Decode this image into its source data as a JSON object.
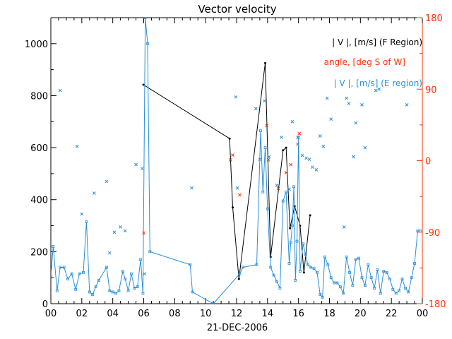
{
  "chart_data": {
    "type": "line",
    "title": "Vector velocity",
    "xlabel": "21-DEC-2006",
    "ylabel": "",
    "y2label": "",
    "xlim": [
      0,
      24
    ],
    "ylim": [
      0,
      1100
    ],
    "y2lim": [
      -180,
      180
    ],
    "x_tick_labels": [
      "00",
      "02",
      "04",
      "06",
      "08",
      "10",
      "12",
      "14",
      "16",
      "18",
      "20",
      "22",
      "00"
    ],
    "y_ticks": [
      0,
      200,
      400,
      600,
      800,
      1000
    ],
    "y2_ticks": [
      180,
      90,
      0,
      -90,
      -180
    ],
    "legend": [
      {
        "label": "| V |, [m/s] (F Region)",
        "color": "#000000"
      },
      {
        "label": "angle, [deg S of W]",
        "color": "#ff3300"
      },
      {
        "label": "| V |, [m/s] (E region)",
        "color": "#2a8fd8"
      }
    ],
    "colors": {
      "f_region": "#000000",
      "angle": "#ff3300",
      "e_region": "#2a8fd8",
      "axis_right": "#ff3300"
    },
    "series": [
      {
        "name": "| V |, [m/s] (F Region)",
        "marker": "dot-line",
        "x": [
          5.98,
          11.55,
          11.75,
          12.15,
          13.85,
          14.2,
          15.0,
          15.2,
          15.45,
          15.75,
          16.1,
          16.35,
          16.75
        ],
        "y": [
          842,
          635,
          370,
          95,
          925,
          180,
          590,
          600,
          290,
          375,
          300,
          120,
          340
        ]
      },
      {
        "name": "angle, [deg S of W]",
        "marker": "x",
        "x": [
          6.0,
          11.6,
          11.75,
          12.2,
          13.95,
          14.05,
          14.7,
          15.2,
          15.5,
          15.95,
          16.05
        ],
        "y": [
          -91,
          1,
          7,
          -43,
          44,
          1,
          -35,
          -15,
          -5,
          21,
          34
        ]
      },
      {
        "name": "| V |, [m/s] (E region) — line",
        "marker": "square-line",
        "x": [
          0.0,
          0.15,
          0.4,
          0.6,
          0.85,
          1.1,
          1.35,
          1.6,
          1.85,
          2.1,
          2.3,
          2.5,
          2.7,
          2.9,
          3.1,
          3.6,
          3.8,
          4.0,
          4.2,
          4.4,
          4.65,
          4.8,
          5.0,
          5.2,
          5.4,
          5.6,
          5.8,
          5.95,
          6.1,
          6.25,
          6.4,
          9.0,
          9.15,
          10.5,
          12.2,
          12.4,
          13.3,
          13.55,
          13.7,
          13.85,
          14.0,
          14.2,
          14.4,
          14.6,
          14.8,
          15.0,
          15.2,
          15.4,
          15.5,
          15.6,
          15.7,
          15.8,
          15.9,
          16.0,
          16.1,
          16.3,
          16.45,
          16.6,
          16.8,
          17.0,
          17.2,
          17.4,
          17.55,
          17.7,
          17.9,
          18.1,
          18.3,
          18.5,
          18.7,
          18.9,
          19.1,
          19.3,
          19.5,
          19.7,
          19.9,
          20.1,
          20.3,
          20.5,
          20.7,
          20.9,
          21.1,
          21.3,
          21.5,
          21.7,
          21.9,
          22.1,
          22.3,
          22.5,
          22.7,
          22.9,
          23.1,
          23.3,
          23.5,
          23.7,
          23.85
        ],
        "y": [
          105,
          220,
          50,
          140,
          140,
          95,
          115,
          55,
          115,
          120,
          315,
          45,
          35,
          65,
          90,
          140,
          50,
          45,
          40,
          50,
          125,
          95,
          50,
          115,
          60,
          65,
          170,
          40,
          1100,
          1000,
          200,
          150,
          45,
          0,
          115,
          140,
          150,
          665,
          430,
          600,
          365,
          140,
          110,
          85,
          60,
          395,
          430,
          155,
          235,
          300,
          450,
          90,
          240,
          640,
          125,
          230,
          190,
          150,
          140,
          135,
          120,
          35,
          25,
          180,
          150,
          100,
          80,
          80,
          65,
          40,
          180,
          120,
          70,
          170,
          175,
          100,
          70,
          150,
          100,
          60,
          130,
          40,
          125,
          120,
          95,
          55,
          40,
          50,
          95,
          60,
          45,
          100,
          155,
          280,
          280
        ]
      },
      {
        "name": "| V |, [m/s] (E region) — scattered",
        "marker": "x",
        "x": [
          0.6,
          1.7,
          2.0,
          2.8,
          3.6,
          3.8,
          4.1,
          4.5,
          4.8,
          5.5,
          5.9,
          6.05,
          9.1,
          11.95,
          12.05,
          13.25,
          13.5,
          13.8,
          14.1,
          14.6,
          14.9,
          15.4,
          15.6,
          15.95,
          16.25,
          16.5,
          16.7,
          16.9,
          17.15,
          17.4,
          17.6,
          17.85,
          18.1,
          18.95,
          19.1,
          19.25,
          19.55,
          19.7,
          20.1,
          20.3,
          21.0,
          21.2,
          23.0
        ],
        "y": [
          820,
          605,
          345,
          425,
          470,
          195,
          275,
          295,
          280,
          535,
          520,
          115,
          445,
          795,
          445,
          750,
          555,
          780,
          565,
          455,
          640,
          440,
          700,
          640,
          570,
          560,
          555,
          525,
          515,
          645,
          605,
          790,
          710,
          295,
          790,
          770,
          565,
          695,
          765,
          600,
          820,
          825,
          765
        ]
      }
    ]
  }
}
